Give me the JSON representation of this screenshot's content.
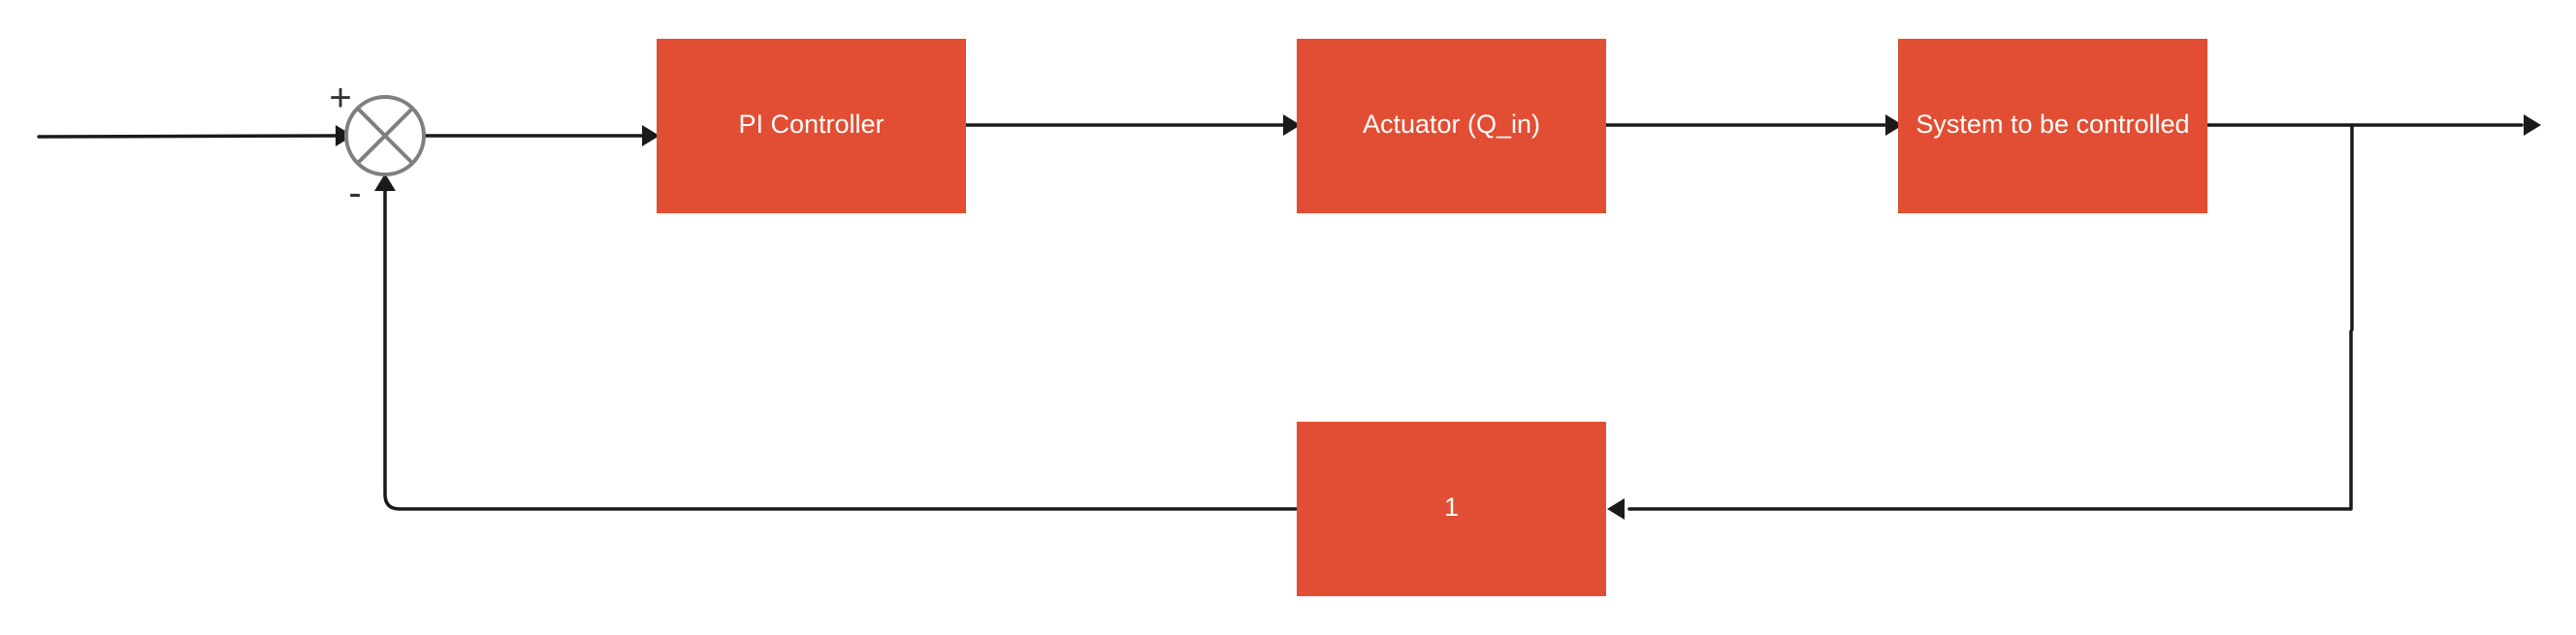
{
  "colors": {
    "block_fill": "#e24e33",
    "block_text": "#ffffff",
    "wire": "#1a1a1a",
    "summing_junction": "#7f7f7f",
    "sign_text": "#333333",
    "background": "#ffffff"
  },
  "summing_junction": {
    "plus_sign": "+",
    "minus_sign": "-"
  },
  "blocks": {
    "controller": {
      "label": "PI Controller"
    },
    "actuator": {
      "label": "Actuator (Q_in)"
    },
    "plant": {
      "label": "System to be controlled"
    },
    "feedback": {
      "label": "1"
    }
  }
}
